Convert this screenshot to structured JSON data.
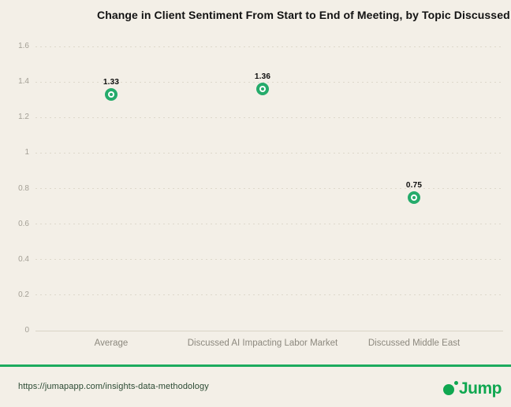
{
  "title": "Change in Client Sentiment From Start to End of Meeting, by Topic Discussed",
  "chart_data": {
    "type": "scatter",
    "title": "Change in Client Sentiment From Start to End of Meeting, by Topic Discussed",
    "categories": [
      "Average",
      "Discussed AI Impacting Labor Market",
      "Discussed Middle East"
    ],
    "values": [
      1.33,
      1.36,
      0.75
    ],
    "point_labels": [
      "1.33",
      "1.36",
      "0.75"
    ],
    "xlabel": "",
    "ylabel": "",
    "ylim": [
      0,
      1.6
    ],
    "ytick_step": 0.2,
    "yticks": [
      "0",
      "0.2",
      "0.4",
      "0.6",
      "0.8",
      "1",
      "1.2",
      "1.4",
      "1.6"
    ],
    "grid": "horizontal-dashed",
    "legend": "none",
    "marker_style": "green donut with white ring",
    "marker_color": "#25ab6b"
  },
  "footer": {
    "url": "https://jumapapp.com/insights-data-methodology",
    "logo_text": "Jump"
  },
  "colors": {
    "background": "#f3efe7",
    "accent_green": "#25ab6b",
    "brand_green": "#0fa750",
    "divider_green": "#1cab5e",
    "gridline": "#ddd8cb",
    "title_text": "#121212",
    "axis_text": "#a39f95",
    "category_text": "#8c887e",
    "url_text": "#2b4a33"
  }
}
